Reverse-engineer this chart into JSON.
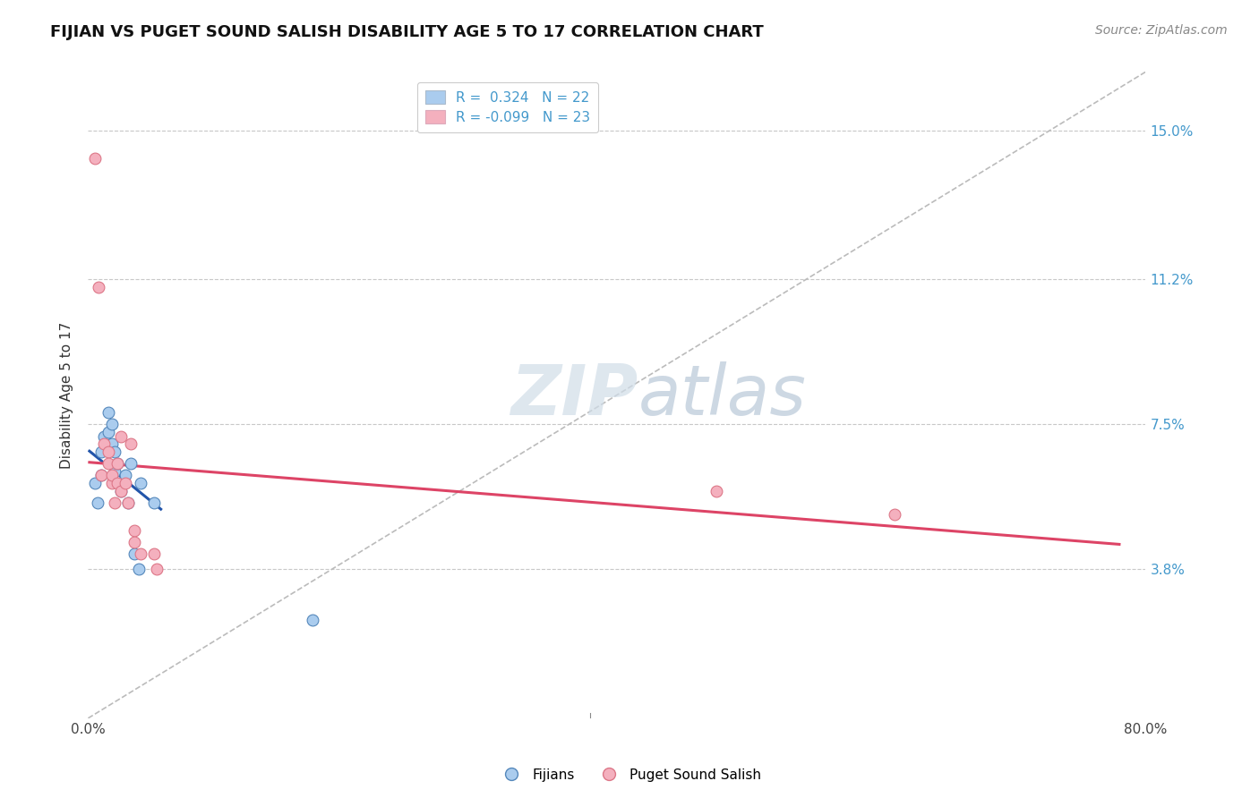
{
  "title": "FIJIAN VS PUGET SOUND SALISH DISABILITY AGE 5 TO 17 CORRELATION CHART",
  "source": "Source: ZipAtlas.com",
  "ylabel": "Disability Age 5 to 17",
  "xlim": [
    0.0,
    0.8
  ],
  "ylim": [
    0.0,
    0.165
  ],
  "xticks": [
    0.0,
    0.8
  ],
  "xticklabels": [
    "0.0%",
    "80.0%"
  ],
  "ytick_values": [
    0.038,
    0.075,
    0.112,
    0.15
  ],
  "ytick_labels": [
    "3.8%",
    "7.5%",
    "11.2%",
    "15.0%"
  ],
  "background_color": "#ffffff",
  "grid_color": "#c8c8c8",
  "fijians_color": "#aaccee",
  "fijians_edge_color": "#5588bb",
  "puget_color": "#f4b0be",
  "puget_edge_color": "#dd7788",
  "fijians_R": 0.324,
  "fijians_N": 22,
  "puget_R": -0.099,
  "puget_N": 23,
  "fijians_line_color": "#2255aa",
  "puget_line_color": "#dd4466",
  "diagonal_color": "#bbbbbb",
  "fijians_x": [
    0.005,
    0.007,
    0.01,
    0.01,
    0.012,
    0.015,
    0.015,
    0.018,
    0.018,
    0.02,
    0.02,
    0.022,
    0.025,
    0.025,
    0.028,
    0.03,
    0.032,
    0.035,
    0.038,
    0.04,
    0.05,
    0.17
  ],
  "fijians_y": [
    0.06,
    0.055,
    0.068,
    0.062,
    0.072,
    0.078,
    0.073,
    0.075,
    0.07,
    0.068,
    0.063,
    0.065,
    0.06,
    0.058,
    0.062,
    0.055,
    0.065,
    0.042,
    0.038,
    0.06,
    0.055,
    0.025
  ],
  "puget_x": [
    0.005,
    0.008,
    0.01,
    0.012,
    0.015,
    0.015,
    0.018,
    0.018,
    0.02,
    0.022,
    0.022,
    0.025,
    0.025,
    0.028,
    0.03,
    0.032,
    0.035,
    0.035,
    0.04,
    0.05,
    0.052,
    0.475,
    0.61
  ],
  "puget_y": [
    0.143,
    0.11,
    0.062,
    0.07,
    0.068,
    0.065,
    0.06,
    0.062,
    0.055,
    0.065,
    0.06,
    0.058,
    0.072,
    0.06,
    0.055,
    0.07,
    0.048,
    0.045,
    0.042,
    0.042,
    0.038,
    0.058,
    0.052
  ],
  "marker_size": 85,
  "title_fontsize": 13,
  "axis_label_fontsize": 11,
  "tick_fontsize": 11,
  "legend_fontsize": 11,
  "source_fontsize": 10
}
